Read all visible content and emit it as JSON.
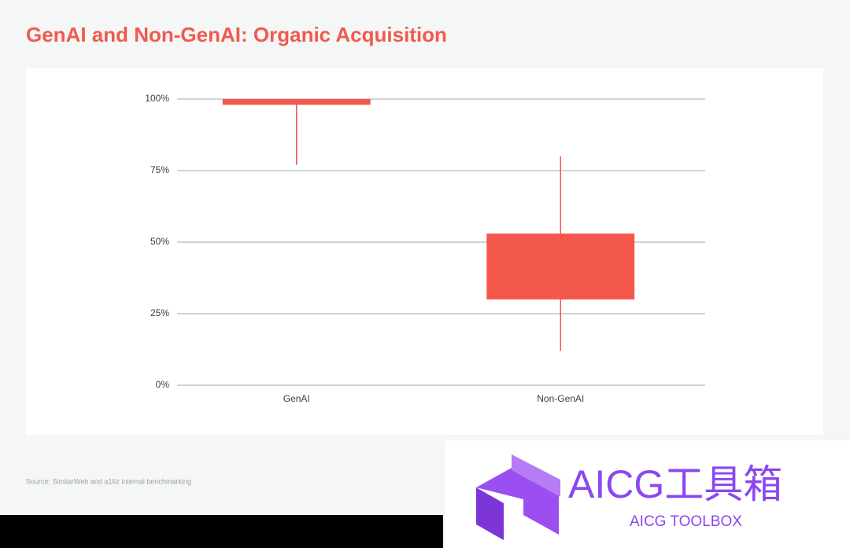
{
  "chart_data": {
    "type": "box",
    "title": "GenAI and Non-GenAI: Organic Acquisition",
    "categories": [
      "GenAI",
      "Non-GenAI"
    ],
    "series": [
      {
        "color": "#f4574c",
        "low": [
          77,
          12
        ],
        "q1": [
          98,
          30
        ],
        "q3": [
          100,
          53
        ],
        "high": [
          100,
          80
        ]
      }
    ],
    "ylim": [
      0,
      100
    ],
    "yticks": [
      {
        "value": 0,
        "label": "0%"
      },
      {
        "value": 25,
        "label": "25%"
      },
      {
        "value": 50,
        "label": "50%"
      },
      {
        "value": 75,
        "label": "75%"
      },
      {
        "value": 100,
        "label": "100%"
      }
    ],
    "grid": true,
    "source": "Source: SimilarWeb and a16z internal benchmarking"
  },
  "watermark": {
    "title": "AICG工具箱",
    "subtitle": "AICG TOOLBOX"
  }
}
